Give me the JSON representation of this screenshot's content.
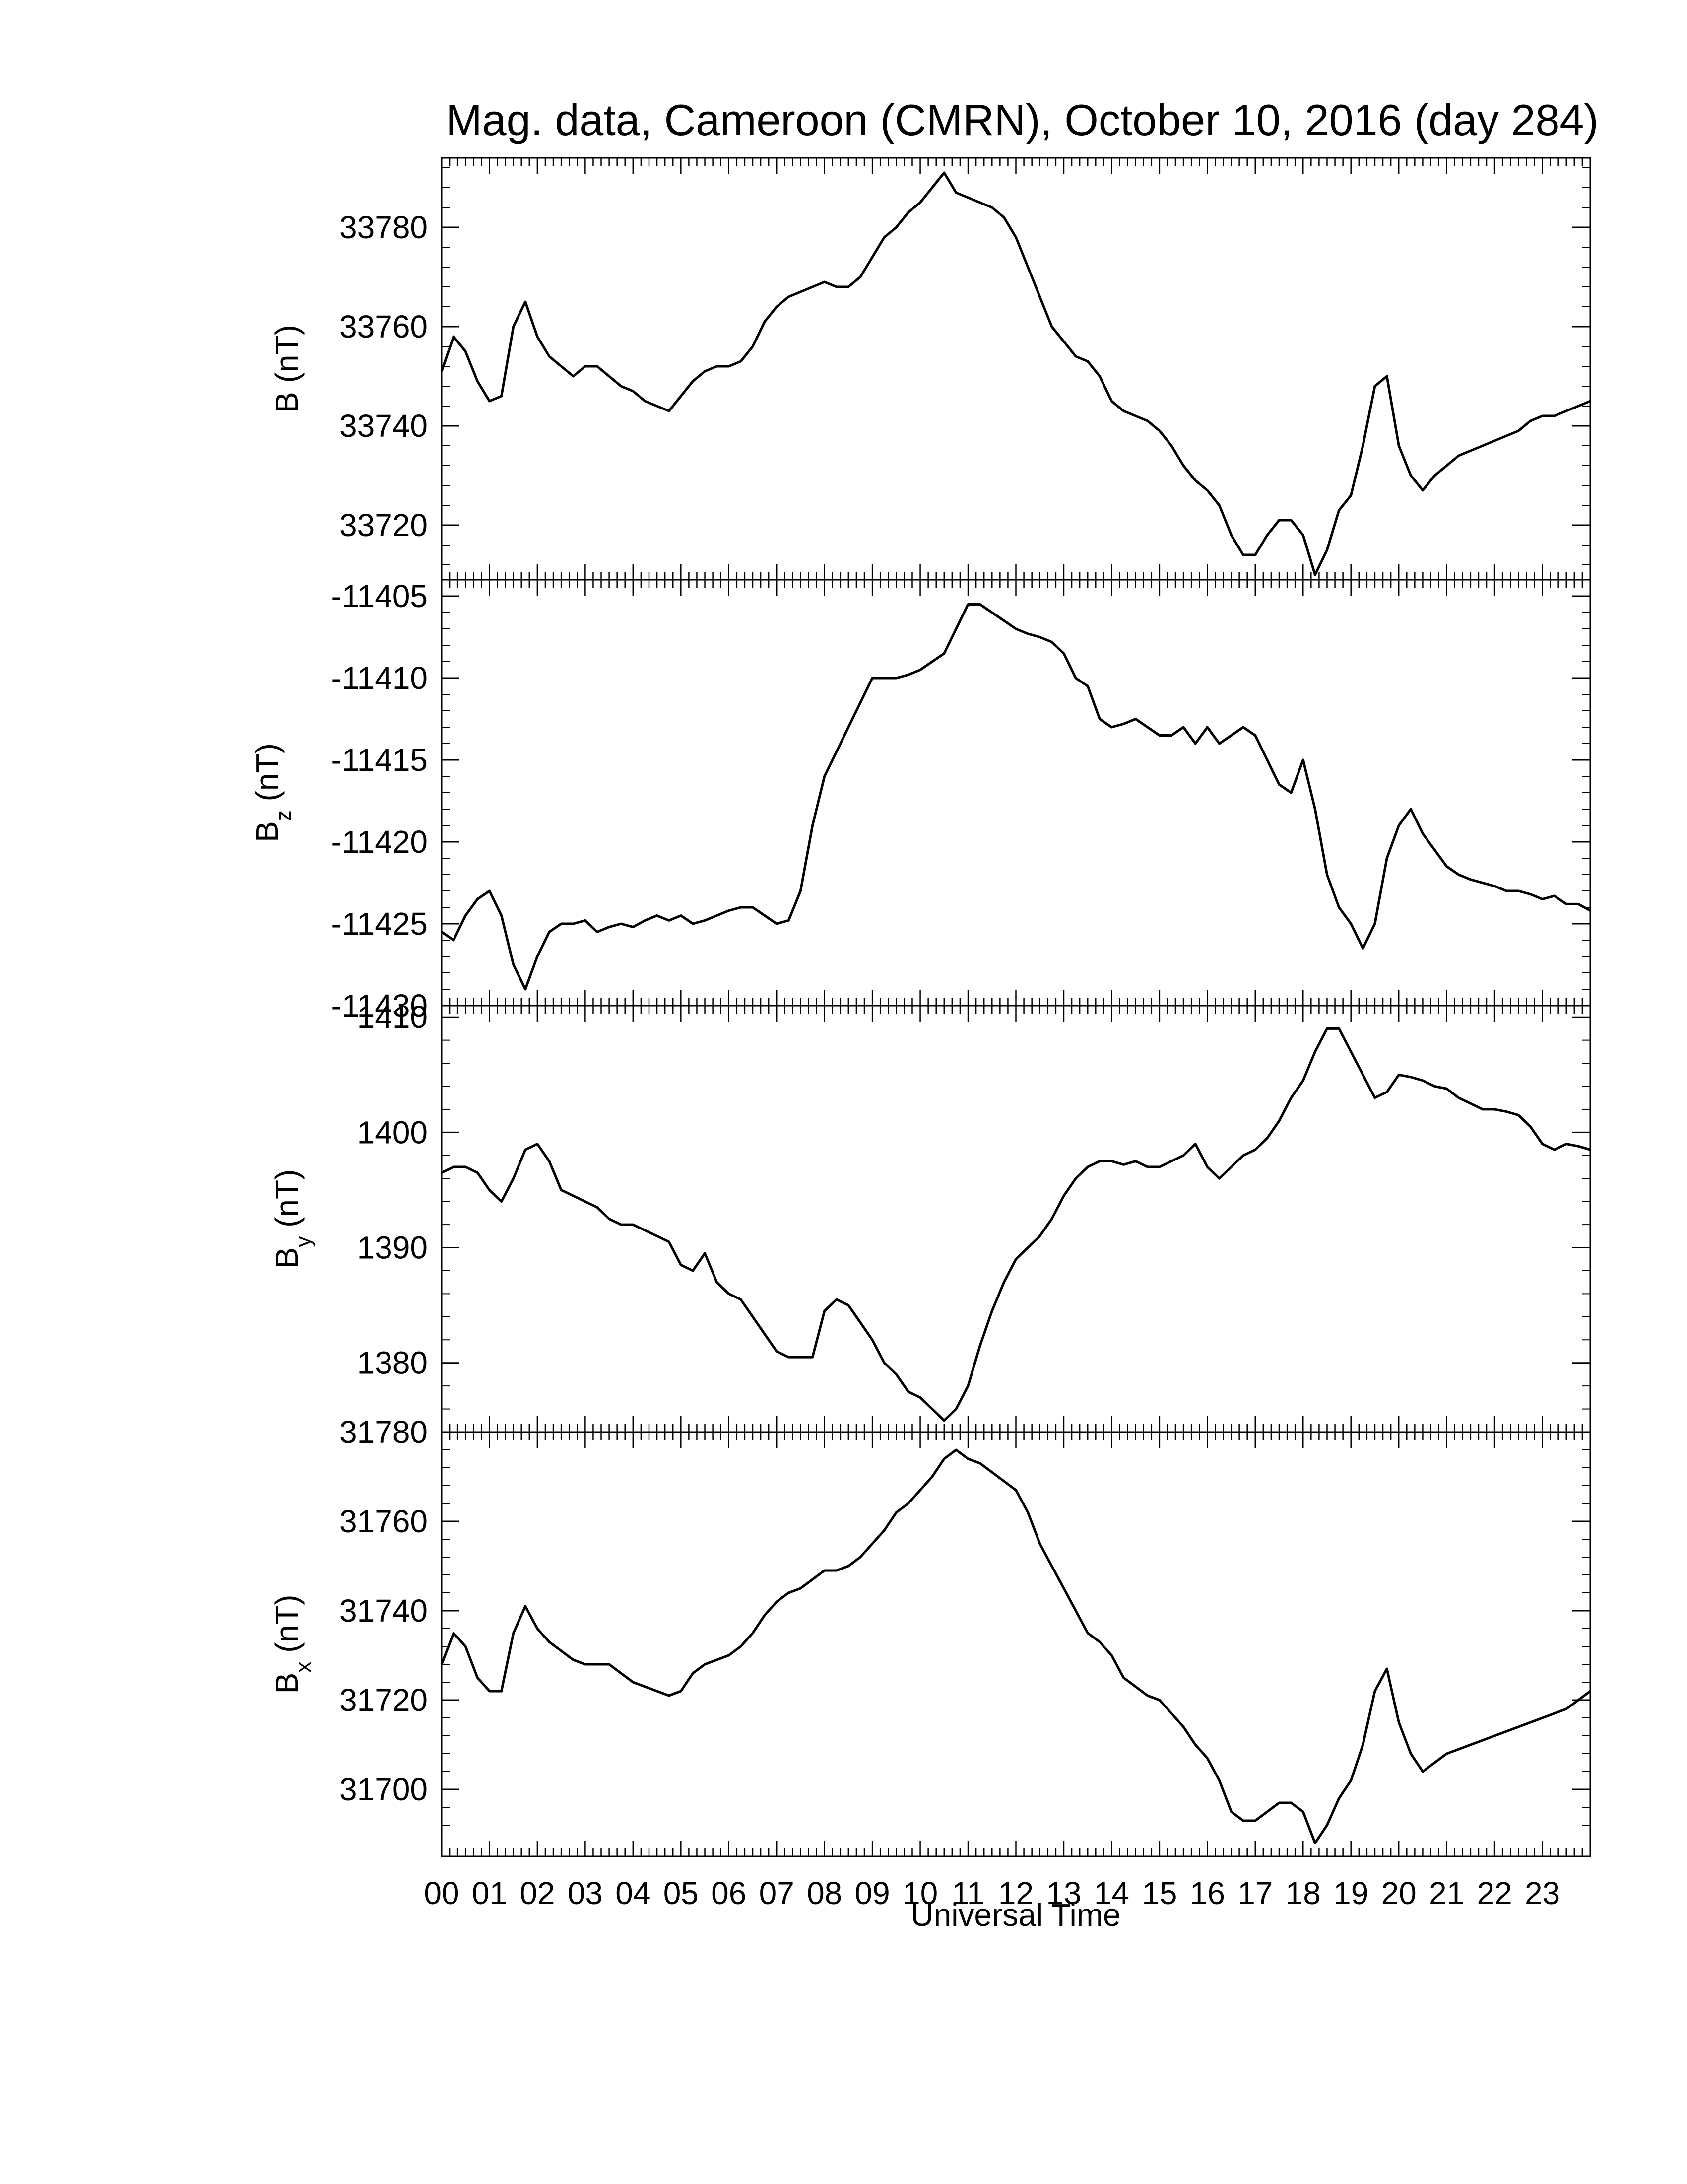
{
  "chart_data": {
    "type": "line",
    "title": "Mag. data, Cameroon (CMRN), October 10, 2016 (day 284)",
    "xlabel": "Universal Time",
    "xlim": [
      0,
      24
    ],
    "x_tick_labels": [
      "00",
      "01",
      "02",
      "03",
      "04",
      "05",
      "06",
      "07",
      "08",
      "09",
      "10",
      "11",
      "12",
      "13",
      "14",
      "15",
      "16",
      "17",
      "18",
      "19",
      "20",
      "21",
      "22",
      "23"
    ],
    "x_tick_values": [
      0,
      1,
      2,
      3,
      4,
      5,
      6,
      7,
      8,
      9,
      10,
      11,
      12,
      13,
      14,
      15,
      16,
      17,
      18,
      19,
      20,
      21,
      22,
      23
    ],
    "grid": false,
    "legend": "none",
    "line_color": "#000000",
    "panels": [
      {
        "id": "B",
        "ylabel_main": "B",
        "ylabel_sub": "",
        "ylabel_unit": "(nT)",
        "ylim": [
          33709,
          33794
        ],
        "yticks": [
          33720,
          33740,
          33760,
          33780
        ],
        "ytick_labels": [
          "33720",
          "33740",
          "33760",
          "33780"
        ],
        "x": [
          0,
          0.25,
          0.5,
          0.75,
          1.0,
          1.25,
          1.5,
          1.75,
          2.0,
          2.25,
          2.5,
          2.75,
          3.0,
          3.25,
          3.5,
          3.75,
          4.0,
          4.25,
          4.5,
          4.75,
          5.0,
          5.25,
          5.5,
          5.75,
          6.0,
          6.25,
          6.5,
          6.75,
          7.0,
          7.25,
          7.5,
          7.75,
          8.0,
          8.25,
          8.5,
          8.75,
          9.0,
          9.25,
          9.5,
          9.75,
          10.0,
          10.25,
          10.5,
          10.75,
          11.0,
          11.25,
          11.5,
          11.75,
          12.0,
          12.25,
          12.5,
          12.75,
          13.0,
          13.25,
          13.5,
          13.75,
          14.0,
          14.25,
          14.5,
          14.75,
          15.0,
          15.25,
          15.5,
          15.75,
          16.0,
          16.25,
          16.5,
          16.75,
          17.0,
          17.25,
          17.5,
          17.75,
          18.0,
          18.25,
          18.5,
          18.75,
          19.0,
          19.25,
          19.5,
          19.75,
          20.0,
          20.25,
          20.5,
          20.75,
          21.0,
          21.25,
          21.5,
          21.75,
          22.0,
          22.25,
          22.5,
          22.75,
          23.0,
          23.25,
          23.5,
          23.75,
          24.0
        ],
        "y": [
          33751,
          33758,
          33755,
          33749,
          33745,
          33746,
          33760,
          33765,
          33758,
          33754,
          33752,
          33750,
          33752,
          33752,
          33750,
          33748,
          33747,
          33745,
          33744,
          33743,
          33746,
          33749,
          33751,
          33752,
          33752,
          33753,
          33756,
          33761,
          33764,
          33766,
          33767,
          33768,
          33769,
          33768,
          33768,
          33770,
          33774,
          33778,
          33780,
          33783,
          33785,
          33788,
          33791,
          33787,
          33786,
          33785,
          33784,
          33782,
          33778,
          33772,
          33766,
          33760,
          33757,
          33754,
          33753,
          33750,
          33745,
          33743,
          33742,
          33741,
          33739,
          33736,
          33732,
          33729,
          33727,
          33724,
          33718,
          33714,
          33714,
          33718,
          33721,
          33721,
          33718,
          33710,
          33715,
          33723,
          33726,
          33736,
          33748,
          33750,
          33736,
          33730,
          33727,
          33730,
          33732,
          33734,
          33735,
          33736,
          33737,
          33738,
          33739,
          33741,
          33742,
          33742,
          33743,
          33744,
          33745
        ]
      },
      {
        "id": "Bz",
        "ylabel_main": "B",
        "ylabel_sub": "z",
        "ylabel_unit": "(nT)",
        "ylim": [
          -11430,
          -11404
        ],
        "yticks": [
          -11430,
          -11425,
          -11420,
          -11415,
          -11410,
          -11405
        ],
        "ytick_labels": [
          "-11430",
          "-11425",
          "-11420",
          "-11415",
          "-11410",
          "-11405"
        ],
        "x": [
          0,
          0.25,
          0.5,
          0.75,
          1.0,
          1.25,
          1.5,
          1.75,
          2.0,
          2.25,
          2.5,
          2.75,
          3.0,
          3.25,
          3.5,
          3.75,
          4.0,
          4.25,
          4.5,
          4.75,
          5.0,
          5.25,
          5.5,
          5.75,
          6.0,
          6.25,
          6.5,
          6.75,
          7.0,
          7.25,
          7.5,
          7.75,
          8.0,
          8.25,
          8.5,
          8.75,
          9.0,
          9.25,
          9.5,
          9.75,
          10.0,
          10.25,
          10.5,
          10.75,
          11.0,
          11.25,
          11.5,
          11.75,
          12.0,
          12.25,
          12.5,
          12.75,
          13.0,
          13.25,
          13.5,
          13.75,
          14.0,
          14.25,
          14.5,
          14.75,
          15.0,
          15.25,
          15.5,
          15.75,
          16.0,
          16.25,
          16.5,
          16.75,
          17.0,
          17.25,
          17.5,
          17.75,
          18.0,
          18.25,
          18.5,
          18.75,
          19.0,
          19.25,
          19.5,
          19.75,
          20.0,
          20.25,
          20.5,
          20.75,
          21.0,
          21.25,
          21.5,
          21.75,
          22.0,
          22.25,
          22.5,
          22.75,
          23.0,
          23.25,
          23.5,
          23.75,
          24.0
        ],
        "y": [
          -11425.5,
          -11426.0,
          -11424.5,
          -11423.5,
          -11423.0,
          -11424.5,
          -11427.5,
          -11429.0,
          -11427.0,
          -11425.5,
          -11425.0,
          -11425.0,
          -11424.8,
          -11425.5,
          -11425.2,
          -11425.0,
          -11425.2,
          -11424.8,
          -11424.5,
          -11424.8,
          -11424.5,
          -11425.0,
          -11424.8,
          -11424.5,
          -11424.2,
          -11424.0,
          -11424.0,
          -11424.5,
          -11425.0,
          -11424.8,
          -11423.0,
          -11419.0,
          -11416.0,
          -11414.5,
          -11413.0,
          -11411.5,
          -11410.0,
          -11410.0,
          -11410.0,
          -11409.8,
          -11409.5,
          -11409.0,
          -11408.5,
          -11407.0,
          -11405.5,
          -11405.5,
          -11406.0,
          -11406.5,
          -11407.0,
          -11407.3,
          -11407.5,
          -11407.8,
          -11408.5,
          -11410.0,
          -11410.5,
          -11412.5,
          -11413.0,
          -11412.8,
          -11412.5,
          -11413.0,
          -11413.5,
          -11413.5,
          -11413.0,
          -11414.0,
          -11413.0,
          -11414.0,
          -11413.5,
          -11413.0,
          -11413.5,
          -11415.0,
          -11416.5,
          -11417.0,
          -11415.0,
          -11418.0,
          -11422.0,
          -11424.0,
          -11425.0,
          -11426.5,
          -11425.0,
          -11421.0,
          -11419.0,
          -11418.0,
          -11419.5,
          -11420.5,
          -11421.5,
          -11422.0,
          -11422.3,
          -11422.5,
          -11422.7,
          -11423.0,
          -11423.0,
          -11423.2,
          -11423.5,
          -11423.3,
          -11423.8,
          -11423.8,
          -11424.2
        ]
      },
      {
        "id": "By",
        "ylabel_main": "B",
        "ylabel_sub": "y",
        "ylabel_unit": "(nT)",
        "ylim": [
          1374,
          1411
        ],
        "yticks": [
          1380,
          1390,
          1400,
          1410
        ],
        "ytick_labels": [
          "1380",
          "1390",
          "1400",
          "1410"
        ],
        "x": [
          0,
          0.25,
          0.5,
          0.75,
          1.0,
          1.25,
          1.5,
          1.75,
          2.0,
          2.25,
          2.5,
          2.75,
          3.0,
          3.25,
          3.5,
          3.75,
          4.0,
          4.25,
          4.5,
          4.75,
          5.0,
          5.25,
          5.5,
          5.75,
          6.0,
          6.25,
          6.5,
          6.75,
          7.0,
          7.25,
          7.5,
          7.75,
          8.0,
          8.25,
          8.5,
          8.75,
          9.0,
          9.25,
          9.5,
          9.75,
          10.0,
          10.25,
          10.5,
          10.75,
          11.0,
          11.25,
          11.5,
          11.75,
          12.0,
          12.25,
          12.5,
          12.75,
          13.0,
          13.25,
          13.5,
          13.75,
          14.0,
          14.25,
          14.5,
          14.75,
          15.0,
          15.25,
          15.5,
          15.75,
          16.0,
          16.25,
          16.5,
          16.75,
          17.0,
          17.25,
          17.5,
          17.75,
          18.0,
          18.25,
          18.5,
          18.75,
          19.0,
          19.25,
          19.5,
          19.75,
          20.0,
          20.25,
          20.5,
          20.75,
          21.0,
          21.25,
          21.5,
          21.75,
          22.0,
          22.25,
          22.5,
          22.75,
          23.0,
          23.25,
          23.5,
          23.75,
          24.0
        ],
        "y": [
          1396.5,
          1397.0,
          1397.0,
          1396.5,
          1395.0,
          1394.0,
          1396.0,
          1398.5,
          1399.0,
          1397.5,
          1395.0,
          1394.5,
          1394.0,
          1393.5,
          1392.5,
          1392.0,
          1392.0,
          1391.5,
          1391.0,
          1390.5,
          1388.5,
          1388.0,
          1389.5,
          1387.0,
          1386.0,
          1385.5,
          1384.0,
          1382.5,
          1381.0,
          1380.5,
          1380.5,
          1380.5,
          1384.5,
          1385.5,
          1385.0,
          1383.5,
          1382.0,
          1380.0,
          1379.0,
          1377.5,
          1377.0,
          1376.0,
          1375.0,
          1376.0,
          1378.0,
          1381.5,
          1384.5,
          1387.0,
          1389.0,
          1390.0,
          1391.0,
          1392.5,
          1394.5,
          1396.0,
          1397.0,
          1397.5,
          1397.5,
          1397.2,
          1397.5,
          1397.0,
          1397.0,
          1397.5,
          1398.0,
          1399.0,
          1397.0,
          1396.0,
          1397.0,
          1398.0,
          1398.5,
          1399.5,
          1401.0,
          1403.0,
          1404.5,
          1407.0,
          1409.0,
          1409.0,
          1407.0,
          1405.0,
          1403.0,
          1403.5,
          1405.0,
          1404.8,
          1404.5,
          1404.0,
          1403.8,
          1403.0,
          1402.5,
          1402.0,
          1402.0,
          1401.8,
          1401.5,
          1400.5,
          1399.0,
          1398.5,
          1399.0,
          1398.8,
          1398.5
        ]
      },
      {
        "id": "Bx",
        "ylabel_main": "B",
        "ylabel_sub": "x",
        "ylabel_unit": "(nT)",
        "ylim": [
          31685,
          31780
        ],
        "yticks": [
          31700,
          31720,
          31740,
          31760,
          31780
        ],
        "ytick_labels": [
          "31700",
          "31720",
          "31740",
          "31760",
          "31780"
        ],
        "x": [
          0,
          0.25,
          0.5,
          0.75,
          1.0,
          1.25,
          1.5,
          1.75,
          2.0,
          2.25,
          2.5,
          2.75,
          3.0,
          3.25,
          3.5,
          3.75,
          4.0,
          4.25,
          4.5,
          4.75,
          5.0,
          5.25,
          5.5,
          5.75,
          6.0,
          6.25,
          6.5,
          6.75,
          7.0,
          7.25,
          7.5,
          7.75,
          8.0,
          8.25,
          8.5,
          8.75,
          9.0,
          9.25,
          9.5,
          9.75,
          10.0,
          10.25,
          10.5,
          10.75,
          11.0,
          11.25,
          11.5,
          11.75,
          12.0,
          12.25,
          12.5,
          12.75,
          13.0,
          13.25,
          13.5,
          13.75,
          14.0,
          14.25,
          14.5,
          14.75,
          15.0,
          15.25,
          15.5,
          15.75,
          16.0,
          16.25,
          16.5,
          16.75,
          17.0,
          17.25,
          17.5,
          17.75,
          18.0,
          18.25,
          18.5,
          18.75,
          19.0,
          19.25,
          19.5,
          19.75,
          20.0,
          20.25,
          20.5,
          20.75,
          21.0,
          21.25,
          21.5,
          21.75,
          22.0,
          22.25,
          22.5,
          22.75,
          23.0,
          23.25,
          23.5,
          23.75,
          24.0
        ],
        "y": [
          31728,
          31735,
          31732,
          31725,
          31722,
          31722,
          31735,
          31741,
          31736,
          31733,
          31731,
          31729,
          31728,
          31728,
          31728,
          31726,
          31724,
          31723,
          31722,
          31721,
          31722,
          31726,
          31728,
          31729,
          31730,
          31732,
          31735,
          31739,
          31742,
          31744,
          31745,
          31747,
          31749,
          31749,
          31750,
          31752,
          31755,
          31758,
          31762,
          31764,
          31767,
          31770,
          31774,
          31776,
          31774,
          31773,
          31771,
          31769,
          31767,
          31762,
          31755,
          31750,
          31745,
          31740,
          31735,
          31733,
          31730,
          31725,
          31723,
          31721,
          31720,
          31717,
          31714,
          31710,
          31707,
          31702,
          31695,
          31693,
          31693,
          31695,
          31697,
          31697,
          31695,
          31688,
          31692,
          31698,
          31702,
          31710,
          31722,
          31727,
          31715,
          31708,
          31704,
          31706,
          31708,
          31709,
          31710,
          31711,
          31712,
          31713,
          31714,
          31715,
          31716,
          31717,
          31718,
          31720,
          31722
        ]
      }
    ]
  }
}
